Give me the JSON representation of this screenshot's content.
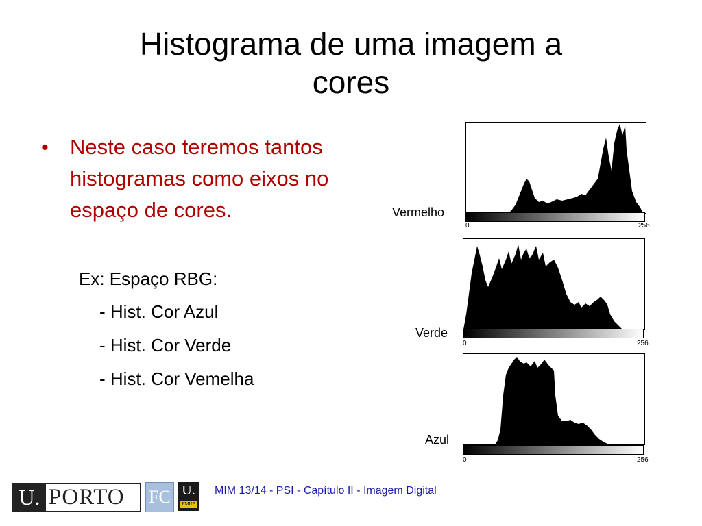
{
  "slide": {
    "title_line1": "Histograma de uma imagem a",
    "title_line2": "cores",
    "bullet_symbol": "•",
    "bullet_text": "Neste caso teremos tantos histogramas como eixos no espaço de cores.",
    "sub_example": "Ex: Espaço RBG:",
    "sub_items": [
      "- Hist. Cor Azul",
      "- Hist. Cor Verde",
      "- Hist. Cor Vemelha"
    ]
  },
  "histograms": [
    {
      "label": "Vermelho",
      "axis_min": "0",
      "axis_max": "256"
    },
    {
      "label": "Verde",
      "axis_min": "0",
      "axis_max": "256"
    },
    {
      "label": "Azul",
      "axis_min": "0",
      "axis_max": "256"
    }
  ],
  "footer": {
    "text": "MIM 13/14 - PSI - Capítulo II - Imagem Digital",
    "logo_uporto_u": "U.",
    "logo_uporto_name": "PORTO",
    "logo_fc": "FC",
    "logo_fmup_u": "U.",
    "logo_fmup_name": "FMUP"
  },
  "colors": {
    "bullet_text": "#b00000",
    "footer_text": "#1a1aa8",
    "histogram_fill": "#000000"
  }
}
